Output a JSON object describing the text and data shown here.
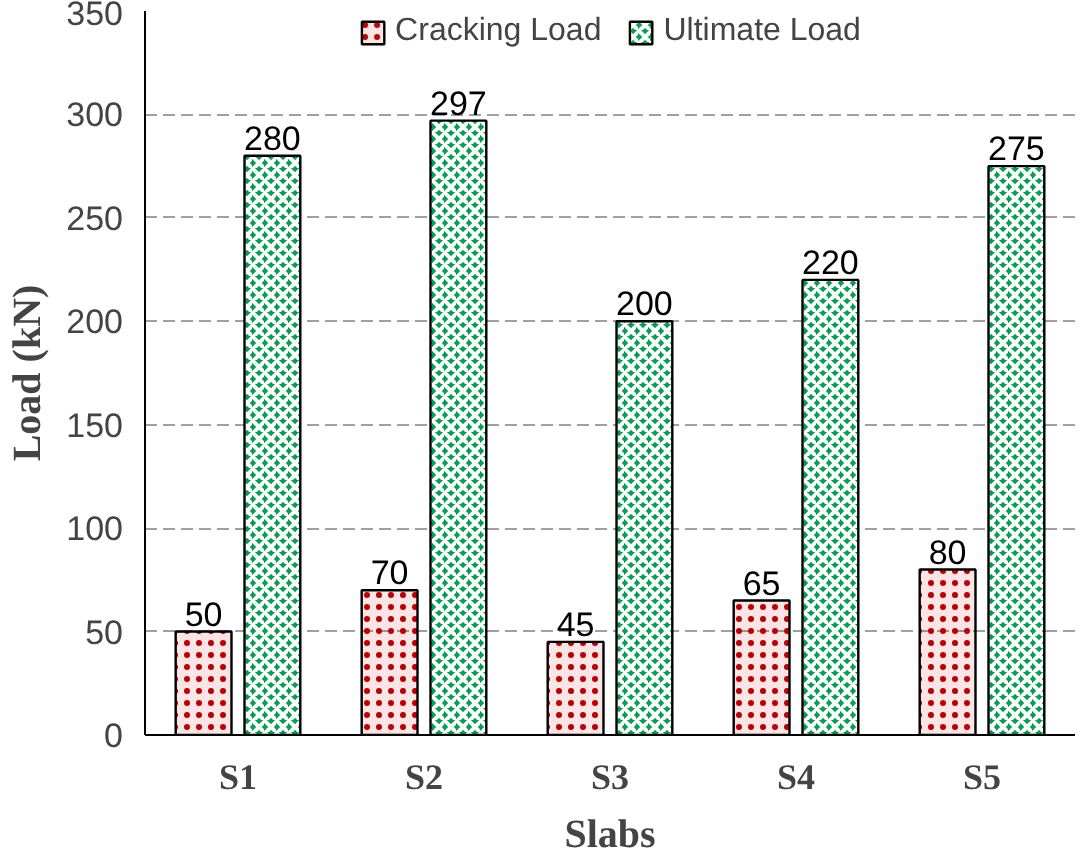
{
  "chart_data": {
    "type": "bar",
    "xlabel": "Slabs",
    "ylabel": "Load (kN)",
    "categories": [
      "S1",
      "S2",
      "S3",
      "S4",
      "S5"
    ],
    "series": [
      {
        "name": "Cracking Load",
        "color": "#c00000",
        "values": [
          50,
          70,
          45,
          65,
          80
        ]
      },
      {
        "name": "Ultimate Load",
        "color": "#00a050",
        "values": [
          280,
          297,
          200,
          220,
          275
        ]
      }
    ],
    "ylim": [
      0,
      350
    ],
    "yticks": [
      0,
      50,
      100,
      150,
      200,
      250,
      300,
      350
    ],
    "grid": "y",
    "legend": "top",
    "data_labels": true
  }
}
